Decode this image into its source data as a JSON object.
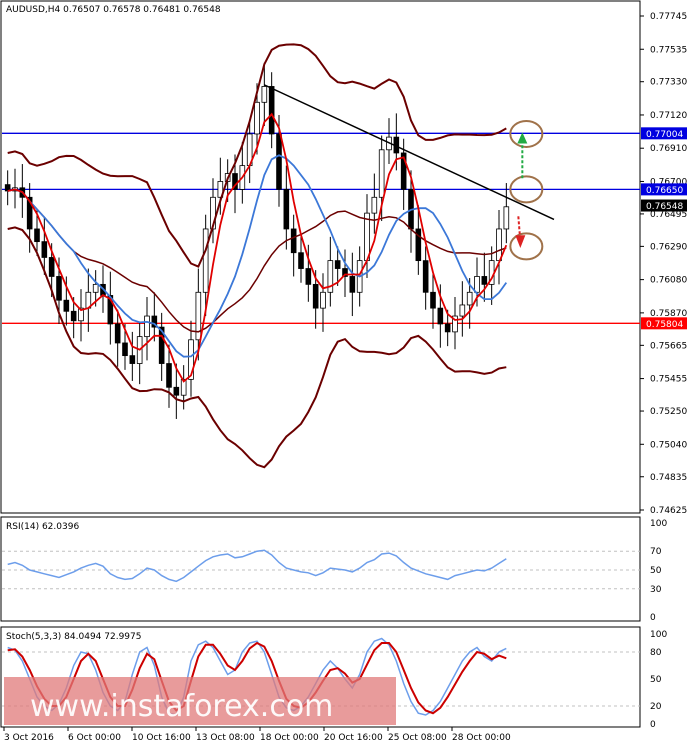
{
  "colors": {
    "level_blue": "#0000e0",
    "level_red": "#ff0000",
    "bollinger": "#6b0000",
    "ma_fast": "#e00000",
    "ma_slow": "#3c78d8",
    "trendline": "#000000",
    "circles": "#a0724a",
    "arrow_up": "#22aa44",
    "arrow_down": "#dd2222",
    "stoch_main": "#6d9eeb",
    "stoch_signal": "#cc0000",
    "rsi": "#6d9eeb",
    "watermark": "#e07a7a"
  },
  "chart_data": [
    {
      "type": "candlestick",
      "title": "AUDUSD,H4  0.76507 0.76578 0.76481 0.76548",
      "y_ticks": [
        "0.77745",
        "0.77535",
        "0.77330",
        "0.77120",
        "0.76910",
        "0.76700",
        "0.76495",
        "0.76290",
        "0.76080",
        "0.75870",
        "0.75665",
        "0.75455",
        "0.75250",
        "0.75040",
        "0.74835",
        "0.74625"
      ],
      "ylim": [
        0.74625,
        0.77745
      ],
      "x_ticks": [
        "3 Oct 2016",
        "6 Oct 00:00",
        "10 Oct 16:00",
        "13 Oct 08:00",
        "18 Oct 00:00",
        "20 Oct 16:00",
        "25 Oct 08:00",
        "28 Oct 00:00"
      ],
      "levels": [
        {
          "value": 0.77004,
          "label": "0.77004",
          "color": "blue"
        },
        {
          "value": 0.7665,
          "label": "0.76650",
          "color": "blue"
        },
        {
          "value": 0.75804,
          "label": "0.75804",
          "color": "red"
        }
      ],
      "current_price": {
        "value": 0.76548,
        "label": "0.76548"
      },
      "close_series": [
        0.7664,
        0.7666,
        0.766,
        0.764,
        0.7632,
        0.7622,
        0.761,
        0.7595,
        0.7588,
        0.7582,
        0.759,
        0.76,
        0.7605,
        0.7598,
        0.758,
        0.7568,
        0.756,
        0.7555,
        0.7572,
        0.7585,
        0.7578,
        0.7555,
        0.754,
        0.7535,
        0.7545,
        0.757,
        0.76,
        0.764,
        0.766,
        0.767,
        0.7675,
        0.7665,
        0.768,
        0.77,
        0.772,
        0.773,
        0.77,
        0.7665,
        0.764,
        0.7625,
        0.7615,
        0.7605,
        0.759,
        0.76,
        0.762,
        0.7615,
        0.761,
        0.76,
        0.762,
        0.765,
        0.766,
        0.769,
        0.7698,
        0.7688,
        0.7665,
        0.764,
        0.762,
        0.76,
        0.759,
        0.758,
        0.7575,
        0.7585,
        0.7592,
        0.76,
        0.761,
        0.7605,
        0.762,
        0.764,
        0.7654
      ]
    },
    {
      "type": "line",
      "title": "RSI(14) 62.0396",
      "y_ticks": [
        "100",
        "70",
        "50",
        "30",
        "0"
      ],
      "ylim": [
        0,
        100
      ],
      "levels": [
        70,
        50,
        30
      ],
      "values": [
        56,
        58,
        55,
        50,
        48,
        46,
        44,
        42,
        45,
        48,
        52,
        55,
        57,
        54,
        46,
        42,
        40,
        41,
        46,
        52,
        50,
        44,
        40,
        38,
        42,
        48,
        54,
        60,
        64,
        66,
        67,
        63,
        64,
        67,
        70,
        71,
        66,
        58,
        52,
        50,
        48,
        47,
        44,
        47,
        52,
        51,
        50,
        48,
        52,
        58,
        61,
        67,
        68,
        65,
        58,
        52,
        49,
        46,
        44,
        42,
        40,
        44,
        46,
        48,
        50,
        49,
        52,
        57,
        62
      ]
    },
    {
      "type": "line",
      "title": "Stoch(5,3,3) 84.0494 72.9975",
      "y_ticks": [
        "100",
        "80",
        "50",
        "20",
        "0"
      ],
      "ylim": [
        0,
        100
      ],
      "levels": [
        80,
        20
      ],
      "series": [
        {
          "values": [
            85,
            82,
            70,
            50,
            30,
            20,
            15,
            22,
            40,
            65,
            80,
            78,
            60,
            35,
            20,
            15,
            25,
            55,
            80,
            85,
            65,
            30,
            12,
            10,
            30,
            70,
            88,
            92,
            85,
            70,
            55,
            60,
            80,
            90,
            92,
            80,
            55,
            30,
            18,
            15,
            20,
            30,
            45,
            60,
            70,
            62,
            50,
            40,
            55,
            80,
            92,
            95,
            88,
            70,
            45,
            25,
            12,
            10,
            15,
            25,
            40,
            55,
            70,
            80,
            85,
            75,
            70,
            80,
            84
          ]
        },
        {
          "values": [
            82,
            83,
            75,
            60,
            42,
            28,
            20,
            20,
            30,
            50,
            70,
            78,
            70,
            50,
            30,
            20,
            20,
            38,
            62,
            78,
            72,
            48,
            25,
            15,
            20,
            48,
            75,
            88,
            88,
            78,
            65,
            60,
            70,
            84,
            90,
            86,
            70,
            48,
            28,
            20,
            18,
            24,
            35,
            48,
            60,
            62,
            56,
            46,
            50,
            66,
            82,
            90,
            90,
            80,
            60,
            40,
            24,
            15,
            12,
            18,
            30,
            44,
            58,
            70,
            80,
            78,
            72,
            76,
            73
          ]
        }
      ]
    }
  ],
  "watermark": {
    "text": "www.instaforex.com"
  }
}
